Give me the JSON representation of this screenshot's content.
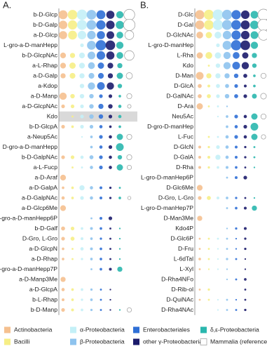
{
  "chart_data": [
    {
      "type": "bubble",
      "title": "A.",
      "highlight_row": 10,
      "categories": [
        "b-D-Glcp",
        "b-D-Galp",
        "a-D-Glcp",
        "L-gro-a-D-manHepp",
        "b-D-GlcpNAc",
        "a-L-Rhap",
        "a-D-Galp",
        "a-Kdop",
        "a-D-Manp",
        "a-D-GlcpNAc",
        "Kdo",
        "b-D-GlcpA",
        "a-Neup5Ac",
        "D-gro-a-D-manHepp",
        "b-D-GalpNAc",
        "a-L-Fucp",
        "a-D-Araf",
        "a-D-GalpA",
        "a-D-GalpNAc",
        "a-D-Glcp6Me",
        "L-gro-a-D-manHepp6P",
        "b-D-Galf",
        "D-Gro, L-Gro",
        "a-D-GlcpN",
        "a-D-Rhap",
        "L-gro-a-D-manHepp7P",
        "a-D-Manp3Me",
        "a-D-GlcpA",
        "b-L-Rhap",
        "b-D-Manp"
      ],
      "series": [
        {
          "name": "Actinobacteria",
          "color": "#f5c08f",
          "values": [
            60,
            55,
            50,
            0,
            25,
            25,
            20,
            0,
            40,
            10,
            0,
            10,
            0,
            0,
            10,
            0,
            25,
            5,
            8,
            25,
            0,
            12,
            10,
            5,
            5,
            0,
            20,
            8,
            6,
            10
          ]
        },
        {
          "name": "Bacilli",
          "color": "#f6ee86",
          "values": [
            70,
            65,
            60,
            0,
            20,
            30,
            25,
            0,
            15,
            10,
            3,
            5,
            0,
            0,
            10,
            3,
            0,
            5,
            5,
            0,
            0,
            10,
            12,
            3,
            3,
            0,
            0,
            5,
            5,
            6
          ]
        },
        {
          "name": "α-Proteobacteria",
          "color": "#c4f0f7",
          "values": [
            80,
            75,
            55,
            10,
            25,
            25,
            20,
            15,
            15,
            10,
            10,
            10,
            2,
            0,
            8,
            3,
            0,
            20,
            10,
            0,
            0,
            5,
            6,
            8,
            4,
            0,
            0,
            5,
            4,
            5
          ]
        },
        {
          "name": "β-Proteobacteria",
          "color": "#8ec3ee",
          "values": [
            70,
            70,
            55,
            60,
            45,
            35,
            25,
            40,
            15,
            15,
            15,
            10,
            5,
            5,
            12,
            8,
            0,
            8,
            8,
            0,
            3,
            6,
            5,
            6,
            5,
            3,
            0,
            4,
            5,
            4
          ]
        },
        {
          "name": "Enterobacteriales",
          "color": "#2f6fd6",
          "values": [
            60,
            65,
            50,
            80,
            55,
            30,
            25,
            45,
            10,
            20,
            15,
            8,
            10,
            8,
            10,
            10,
            0,
            6,
            6,
            0,
            6,
            5,
            4,
            5,
            5,
            5,
            0,
            3,
            3,
            3
          ]
        },
        {
          "name": "other γ-Proteobacteria",
          "color": "#1b1b6b",
          "values": [
            50,
            55,
            45,
            70,
            50,
            25,
            20,
            40,
            10,
            15,
            10,
            5,
            8,
            10,
            8,
            8,
            0,
            4,
            4,
            0,
            10,
            3,
            3,
            3,
            3,
            6,
            0,
            2,
            2,
            2
          ]
        },
        {
          "name": "δ,ε-Proteobacteria",
          "color": "#2ab7ae",
          "values": [
            40,
            50,
            35,
            40,
            35,
            20,
            30,
            15,
            5,
            8,
            8,
            5,
            30,
            45,
            15,
            30,
            0,
            3,
            5,
            0,
            0,
            2,
            2,
            2,
            2,
            20,
            0,
            0,
            0,
            2
          ]
        },
        {
          "name": "Mammalia (reference)",
          "color": "#ffffff",
          "values": [
            90,
            100,
            60,
            0,
            70,
            0,
            30,
            0,
            20,
            10,
            0,
            0,
            20,
            0,
            20,
            15,
            0,
            0,
            8,
            0,
            0,
            0,
            0,
            0,
            0,
            0,
            0,
            0,
            0,
            15
          ]
        }
      ]
    },
    {
      "type": "bubble",
      "title": "B.",
      "categories": [
        "D-Glc",
        "D-Gal",
        "D-GlcNAc",
        "L-gro-D-manHep",
        "L-Rha",
        "Kdo",
        "D-Man",
        "D-GlcA",
        "D-GalNAc",
        "D-Ara",
        "Neu5Ac",
        "D-gro-D-manHep",
        "L-Fuc",
        "D-GlcN",
        "D-GalA",
        "D-Rha",
        "L-gro-D-manHep6P",
        "D-Glc6Me",
        "D-Gro, L-Gro",
        "L-gro-D-manHep7P",
        "D-Man3Me",
        "Kdo4P",
        "D-Glc6P",
        "D-Fru",
        "L-6dTal",
        "L-Xyl",
        "D-Rha4NFo",
        "D-Rib-ol",
        "D-QuiNAc",
        "D-Rha4NAc"
      ],
      "series": [
        {
          "values": [
            65,
            60,
            35,
            0,
            30,
            0,
            45,
            12,
            12,
            30,
            0,
            0,
            0,
            6,
            6,
            6,
            0,
            25,
            10,
            0,
            20,
            0,
            3,
            3,
            5,
            3,
            0,
            3,
            3,
            0
          ]
        },
        {
          "values": [
            75,
            70,
            30,
            0,
            35,
            3,
            20,
            6,
            12,
            3,
            0,
            0,
            3,
            4,
            6,
            4,
            0,
            0,
            12,
            0,
            0,
            0,
            3,
            3,
            3,
            2,
            0,
            4,
            3,
            0
          ]
        },
        {
          "values": [
            85,
            80,
            35,
            10,
            30,
            15,
            20,
            12,
            10,
            3,
            2,
            0,
            3,
            10,
            20,
            5,
            0,
            0,
            6,
            0,
            0,
            0,
            3,
            2,
            2,
            2,
            0,
            0,
            2,
            2
          ]
        },
        {
          "values": [
            75,
            75,
            55,
            60,
            40,
            40,
            20,
            12,
            15,
            2,
            5,
            5,
            8,
            8,
            8,
            6,
            3,
            0,
            5,
            3,
            0,
            2,
            3,
            3,
            4,
            2,
            2,
            0,
            3,
            3
          ]
        },
        {
          "values": [
            65,
            70,
            65,
            80,
            35,
            45,
            15,
            10,
            12,
            0,
            10,
            8,
            10,
            6,
            6,
            5,
            6,
            0,
            4,
            5,
            0,
            4,
            2,
            2,
            3,
            0,
            3,
            0,
            2,
            3
          ]
        },
        {
          "values": [
            55,
            60,
            55,
            70,
            30,
            40,
            12,
            6,
            10,
            0,
            8,
            10,
            8,
            4,
            4,
            3,
            10,
            0,
            3,
            6,
            0,
            6,
            4,
            4,
            2,
            2,
            5,
            3,
            3,
            4
          ]
        },
        {
          "values": [
            45,
            55,
            45,
            40,
            20,
            15,
            5,
            5,
            18,
            0,
            30,
            45,
            30,
            3,
            3,
            2,
            0,
            0,
            2,
            20,
            0,
            0,
            0,
            0,
            0,
            0,
            0,
            0,
            0,
            0
          ]
        },
        {
          "values": [
            95,
            100,
            80,
            0,
            0,
            0,
            20,
            0,
            25,
            0,
            20,
            0,
            15,
            0,
            0,
            0,
            0,
            0,
            0,
            0,
            0,
            0,
            0,
            0,
            0,
            0,
            0,
            0,
            0,
            0
          ]
        }
      ]
    }
  ]
}
